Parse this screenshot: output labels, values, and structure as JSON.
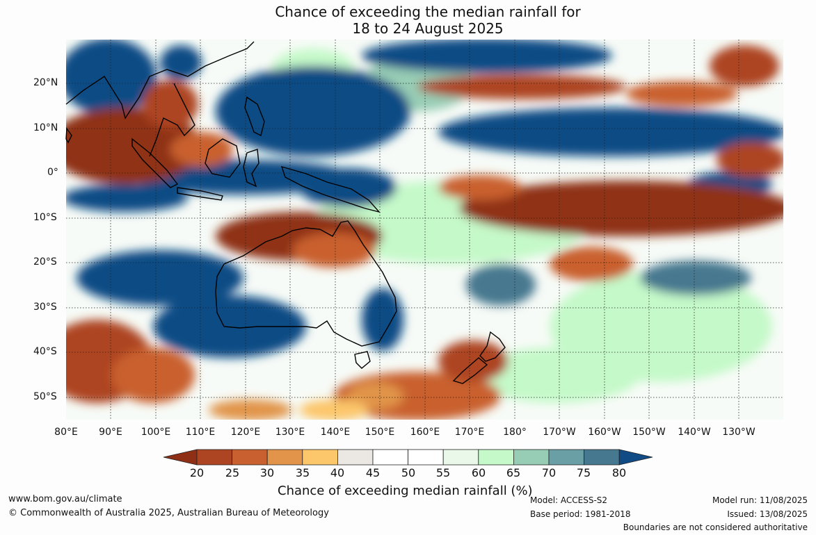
{
  "title": {
    "line1": "Chance of exceeding the median rainfall for",
    "line2": "18 to 24 August 2025"
  },
  "map": {
    "region": "Australia and western Pacific",
    "lat_labels": [
      "20°N",
      "10°N",
      "0°",
      "10°S",
      "20°S",
      "30°S",
      "40°S",
      "50°S"
    ],
    "lon_labels": [
      "80°E",
      "90°E",
      "100°E",
      "110°E",
      "120°E",
      "130°E",
      "140°E",
      "150°E",
      "160°E",
      "170°E",
      "180°",
      "170°W",
      "160°W",
      "150°W",
      "140°W",
      "130°W"
    ]
  },
  "colorbar": {
    "title": "Chance of exceeding median rainfall (%)",
    "ticks": [
      "20",
      "25",
      "30",
      "35",
      "40",
      "45",
      "50",
      "55",
      "60",
      "65",
      "70",
      "75",
      "80"
    ],
    "colors": [
      "#8f3016",
      "#ad4422",
      "#c9602f",
      "#e1944a",
      "#fcc66a",
      "#ebe7e2",
      "#ffffff",
      "#ffffff",
      "#e9f8e9",
      "#c5f9c9",
      "#98cdb5",
      "#6b9fa6",
      "#46788f",
      "#114b85"
    ]
  },
  "footer": {
    "url": "www.bom.gov.au/climate",
    "copyright": "© Commonwealth of Australia 2025, Australian Bureau of Meteorology",
    "model": "Model: ACCESS-S2",
    "base_period": "Base period: 1981-2018",
    "model_run": "Model run: 11/08/2025",
    "issued": "Issued: 13/08/2025",
    "disclaimer": "Boundaries are not considered authoritative"
  }
}
